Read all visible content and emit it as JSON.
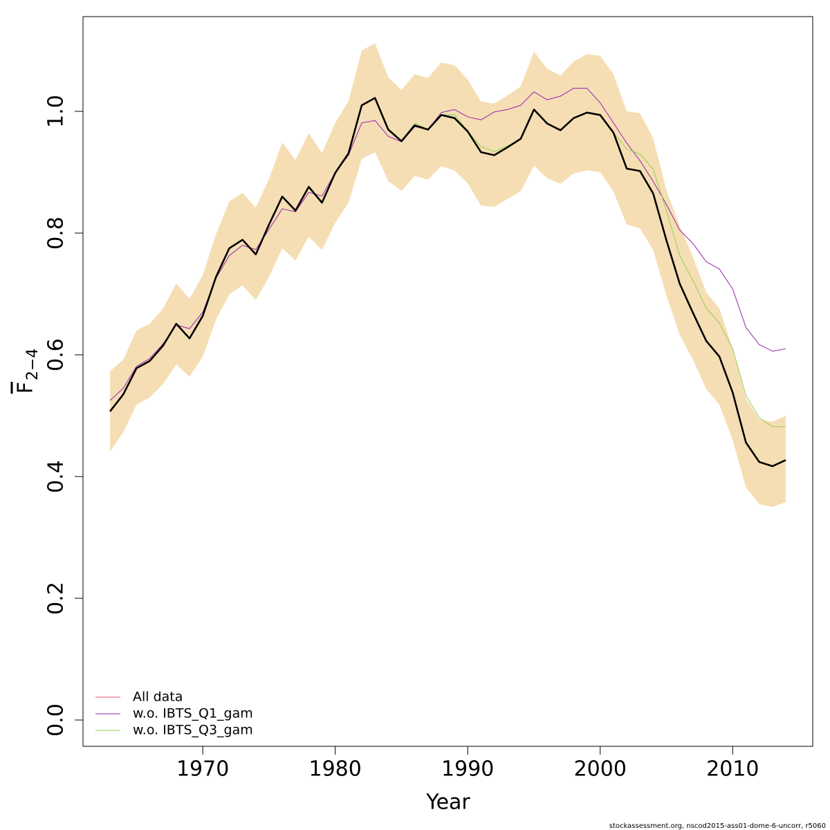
{
  "chart_data": {
    "type": "line",
    "x_label": "Year",
    "y_label": "F",
    "y_label_subscript": "2−4",
    "footer": "stockassessment.org, nscod2015-ass01-dome-6-uncorr, r5060",
    "x": [
      1963,
      1964,
      1965,
      1966,
      1967,
      1968,
      1969,
      1970,
      1971,
      1972,
      1973,
      1974,
      1975,
      1976,
      1977,
      1978,
      1979,
      1980,
      1981,
      1982,
      1983,
      1984,
      1985,
      1986,
      1987,
      1988,
      1989,
      1990,
      1991,
      1992,
      1993,
      1994,
      1995,
      1996,
      1997,
      1998,
      1999,
      2000,
      2001,
      2002,
      2003,
      2004,
      2005,
      2006,
      2007,
      2008,
      2009,
      2010,
      2011,
      2012,
      2013,
      2014
    ],
    "band": {
      "color": "#f5deb3",
      "upper": [
        0.573,
        0.592,
        0.64,
        0.651,
        0.676,
        0.717,
        0.692,
        0.731,
        0.798,
        0.852,
        0.866,
        0.842,
        0.889,
        0.949,
        0.92,
        0.964,
        0.932,
        0.981,
        1.017,
        1.1,
        1.112,
        1.056,
        1.035,
        1.061,
        1.055,
        1.08,
        1.076,
        1.052,
        1.016,
        1.013,
        1.026,
        1.041,
        1.098,
        1.07,
        1.059,
        1.082,
        1.094,
        1.091,
        1.061,
        1.0,
        0.997,
        0.956,
        0.87,
        0.812,
        0.761,
        0.703,
        0.676,
        0.61,
        0.528,
        0.494,
        0.49,
        0.5
      ],
      "lower": [
        0.441,
        0.473,
        0.518,
        0.53,
        0.552,
        0.584,
        0.564,
        0.597,
        0.658,
        0.699,
        0.714,
        0.69,
        0.728,
        0.775,
        0.755,
        0.794,
        0.772,
        0.817,
        0.85,
        0.922,
        0.933,
        0.886,
        0.869,
        0.894,
        0.888,
        0.91,
        0.903,
        0.882,
        0.845,
        0.843,
        0.856,
        0.869,
        0.911,
        0.89,
        0.881,
        0.898,
        0.903,
        0.9,
        0.868,
        0.814,
        0.808,
        0.772,
        0.697,
        0.633,
        0.592,
        0.544,
        0.518,
        0.46,
        0.382,
        0.355,
        0.35,
        0.358
      ]
    },
    "series": [
      {
        "name": "All data",
        "color": "#df536b",
        "values": [
          0.507,
          0.535,
          0.578,
          0.59,
          0.615,
          0.651,
          0.627,
          0.664,
          0.728,
          0.775,
          0.789,
          0.765,
          0.814,
          0.86,
          0.837,
          0.876,
          0.85,
          0.899,
          0.931,
          1.01,
          1.022,
          0.97,
          0.951,
          0.977,
          0.97,
          0.994,
          0.989,
          0.967,
          0.933,
          0.928,
          0.941,
          0.955,
          1.003,
          0.98,
          0.969,
          0.989,
          0.998,
          0.994,
          0.965,
          0.906,
          0.902,
          0.865,
          0.788,
          0.717,
          0.669,
          0.623,
          0.597,
          0.538,
          0.456,
          0.424,
          0.417,
          0.427
        ]
      },
      {
        "name": "w.o. IBTS_Q1_gam",
        "color": "#9a1fb3",
        "values": [
          0.525,
          0.545,
          0.581,
          0.594,
          0.618,
          0.649,
          0.643,
          0.67,
          0.726,
          0.763,
          0.78,
          0.773,
          0.806,
          0.84,
          0.835,
          0.867,
          0.861,
          0.899,
          0.928,
          0.981,
          0.985,
          0.959,
          0.95,
          0.975,
          0.97,
          0.998,
          1.003,
          0.991,
          0.986,
          0.999,
          1.003,
          1.01,
          1.032,
          1.019,
          1.025,
          1.038,
          1.038,
          1.014,
          0.981,
          0.948,
          0.919,
          0.885,
          0.847,
          0.805,
          0.783,
          0.753,
          0.741,
          0.708,
          0.645,
          0.617,
          0.606,
          0.61
        ]
      },
      {
        "name": "w.o. IBTS_Q3_gam",
        "color": "#8fd14f",
        "values": [
          0.507,
          0.535,
          0.578,
          0.59,
          0.615,
          0.651,
          0.627,
          0.664,
          0.728,
          0.775,
          0.789,
          0.765,
          0.814,
          0.86,
          0.837,
          0.876,
          0.85,
          0.899,
          0.931,
          1.01,
          1.022,
          0.972,
          0.951,
          0.981,
          0.97,
          0.994,
          0.995,
          0.967,
          0.942,
          0.934,
          0.943,
          0.955,
          1.003,
          0.98,
          0.969,
          0.989,
          0.998,
          0.994,
          0.965,
          0.938,
          0.93,
          0.905,
          0.837,
          0.763,
          0.722,
          0.677,
          0.652,
          0.61,
          0.533,
          0.497,
          0.482,
          0.482
        ]
      },
      {
        "color": "#000000",
        "values": [
          0.507,
          0.535,
          0.578,
          0.59,
          0.615,
          0.651,
          0.627,
          0.664,
          0.728,
          0.775,
          0.789,
          0.765,
          0.814,
          0.86,
          0.837,
          0.876,
          0.85,
          0.899,
          0.931,
          1.01,
          1.022,
          0.97,
          0.951,
          0.977,
          0.97,
          0.994,
          0.989,
          0.967,
          0.933,
          0.928,
          0.941,
          0.955,
          1.003,
          0.98,
          0.969,
          0.989,
          0.998,
          0.994,
          0.965,
          0.906,
          0.902,
          0.865,
          0.788,
          0.717,
          0.669,
          0.623,
          0.597,
          0.538,
          0.456,
          0.424,
          0.417,
          0.427
        ]
      }
    ],
    "xlim": [
      1960.96,
      2016.04
    ],
    "ylim": [
      -0.0432,
      1.1557
    ],
    "xticks": [
      1970,
      1980,
      1990,
      2000,
      2010
    ],
    "yticks": [
      {
        "value": 0,
        "label": "0.0"
      },
      0.2,
      0.4,
      0.6,
      0.8,
      {
        "value": 1,
        "label": "1.0"
      }
    ],
    "legend": "bottom-left",
    "grid": false
  }
}
